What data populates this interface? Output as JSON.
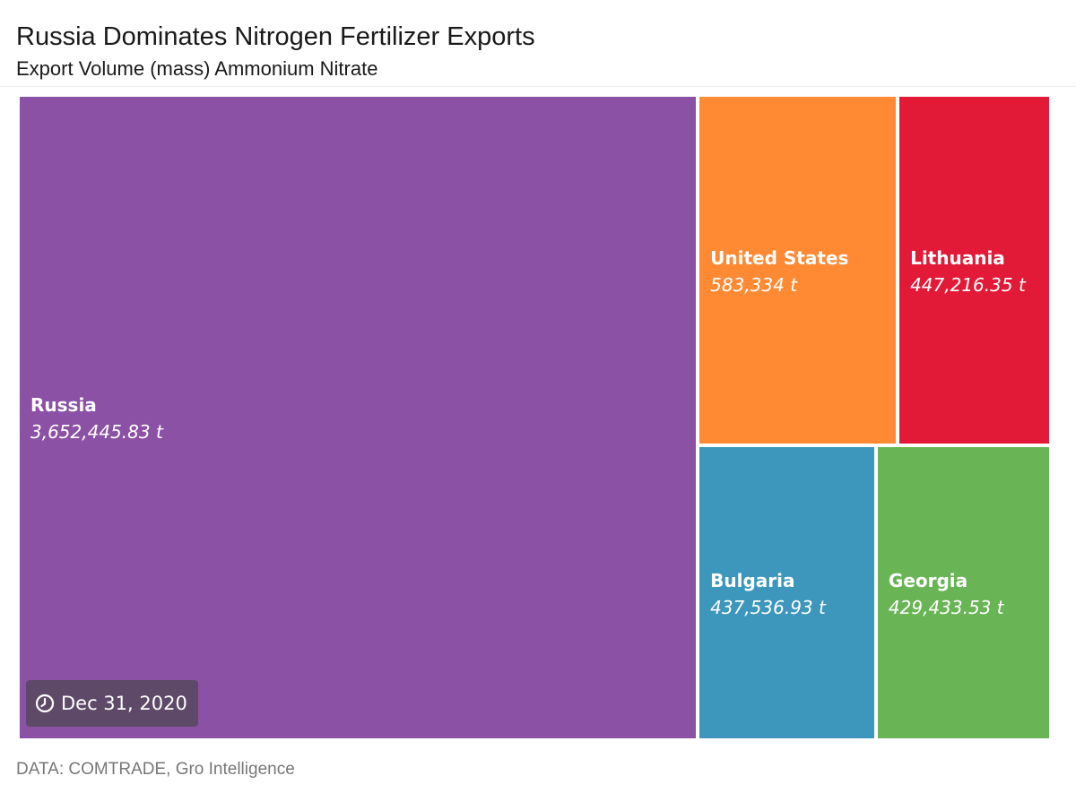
{
  "chart_data": {
    "type": "treemap",
    "title": "Russia Dominates Nitrogen Fertilizer Exports",
    "subtitle": "Export Volume (mass) Ammonium Nitrate",
    "unit": "t",
    "items": [
      {
        "name": "Russia",
        "value": 3652445.83,
        "label": "3,652,445.83 t",
        "color": "#8b51a5"
      },
      {
        "name": "United States",
        "value": 583334,
        "label": "583,334 t",
        "color": "#ff8a33"
      },
      {
        "name": "Lithuania",
        "value": 447216.35,
        "label": "447,216.35 t",
        "color": "#e21a37"
      },
      {
        "name": "Bulgaria",
        "value": 437536.93,
        "label": "437,536.93 t",
        "color": "#3d96bb"
      },
      {
        "name": "Georgia",
        "value": 429433.53,
        "label": "429,433.53 t",
        "color": "#69b556"
      }
    ],
    "date": "Dec 31, 2020",
    "source": "DATA: COMTRADE, Gro Intelligence"
  },
  "badge": {
    "icon": "clock-icon",
    "color": "#5e4a68"
  }
}
